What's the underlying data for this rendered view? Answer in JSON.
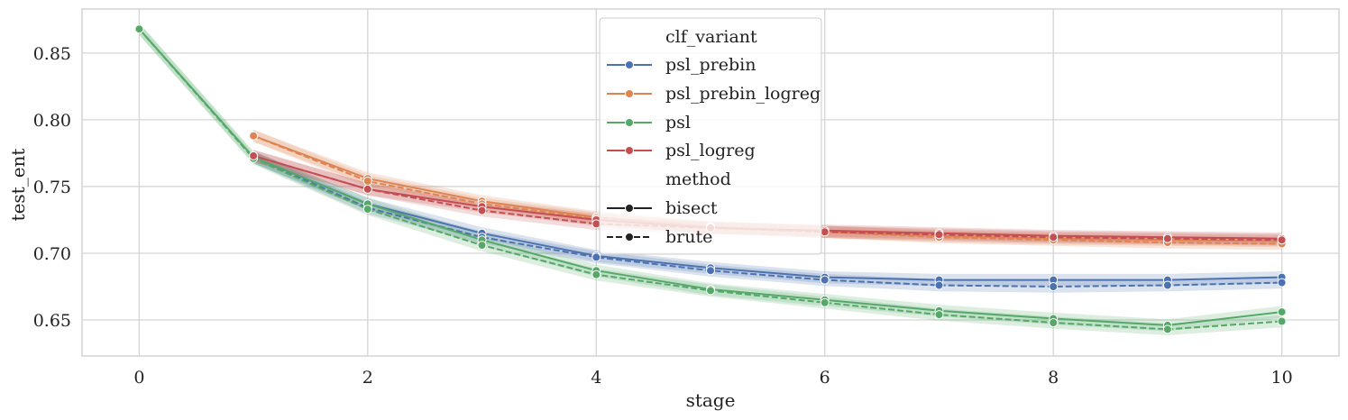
{
  "chart_data": {
    "type": "line",
    "xlabel": "stage",
    "ylabel": "test_ent",
    "xlim": [
      -0.5,
      10.5
    ],
    "ylim": [
      0.623,
      0.883
    ],
    "xticks": [
      0,
      2,
      4,
      6,
      8,
      10
    ],
    "yticks": [
      0.65,
      0.7,
      0.75,
      0.8,
      0.85
    ],
    "ytick_labels": [
      "0.65",
      "0.70",
      "0.75",
      "0.80",
      "0.85"
    ],
    "grid": true,
    "legend_position": "top-center",
    "legend": {
      "hue_title": "clf_variant",
      "style_title": "method",
      "variants": [
        "psl_prebin",
        "psl_prebin_logreg",
        "psl",
        "psl_logreg"
      ],
      "methods": [
        "bisect",
        "brute"
      ]
    },
    "series": [
      {
        "name": "psl_prebin",
        "method": "bisect",
        "color": "#4c72b0",
        "x": [
          1,
          2,
          3,
          4,
          5,
          6,
          7,
          8,
          9,
          10
        ],
        "y": [
          0.772,
          0.737,
          0.715,
          0.698,
          0.689,
          0.682,
          0.68,
          0.68,
          0.68,
          0.682
        ],
        "ci": 0.0045
      },
      {
        "name": "psl_prebin",
        "method": "brute",
        "color": "#4c72b0",
        "x": [
          1,
          2,
          3,
          4,
          5,
          6,
          7,
          8,
          9,
          10
        ],
        "y": [
          0.772,
          0.734,
          0.712,
          0.697,
          0.687,
          0.68,
          0.676,
          0.675,
          0.676,
          0.678
        ],
        "ci": 0.0045
      },
      {
        "name": "psl_prebin_logreg",
        "method": "bisect",
        "color": "#dd8452",
        "x": [
          1,
          2,
          3,
          4,
          5,
          6,
          7,
          8,
          9,
          10
        ],
        "y": [
          0.788,
          0.756,
          0.739,
          0.727,
          0.72,
          0.716,
          0.713,
          0.711,
          0.71,
          0.709
        ],
        "ci": 0.0045
      },
      {
        "name": "psl_prebin_logreg",
        "method": "brute",
        "color": "#dd8452",
        "x": [
          1,
          2,
          3,
          4,
          5,
          6,
          7,
          8,
          9,
          10
        ],
        "y": [
          0.788,
          0.754,
          0.737,
          0.726,
          0.719,
          0.716,
          0.712,
          0.71,
          0.708,
          0.707
        ],
        "ci": 0.0045
      },
      {
        "name": "psl",
        "method": "bisect",
        "color": "#55a868",
        "x": [
          0,
          1,
          2,
          3,
          4,
          5,
          6,
          7,
          8,
          9,
          10
        ],
        "y": [
          0.868,
          0.772,
          0.737,
          0.71,
          0.687,
          0.673,
          0.665,
          0.657,
          0.651,
          0.646,
          0.656
        ],
        "ci": 0.0045
      },
      {
        "name": "psl",
        "method": "brute",
        "color": "#55a868",
        "x": [
          0,
          1,
          2,
          3,
          4,
          5,
          6,
          7,
          8,
          9,
          10
        ],
        "y": [
          0.868,
          0.771,
          0.733,
          0.706,
          0.684,
          0.672,
          0.663,
          0.654,
          0.648,
          0.643,
          0.649
        ],
        "ci": 0.0045
      },
      {
        "name": "psl_logreg",
        "method": "bisect",
        "color": "#c44e52",
        "x": [
          1,
          2,
          3,
          4,
          5,
          6,
          7,
          8,
          9,
          10
        ],
        "y": [
          0.773,
          0.748,
          0.735,
          0.725,
          0.719,
          0.717,
          0.715,
          0.713,
          0.712,
          0.711
        ],
        "ci": 0.0045
      },
      {
        "name": "psl_logreg",
        "method": "brute",
        "color": "#c44e52",
        "x": [
          1,
          2,
          3,
          4,
          5,
          6,
          7,
          8,
          9,
          10
        ],
        "y": [
          0.773,
          0.748,
          0.732,
          0.722,
          0.719,
          0.716,
          0.714,
          0.712,
          0.711,
          0.71
        ],
        "ci": 0.0045
      }
    ]
  }
}
